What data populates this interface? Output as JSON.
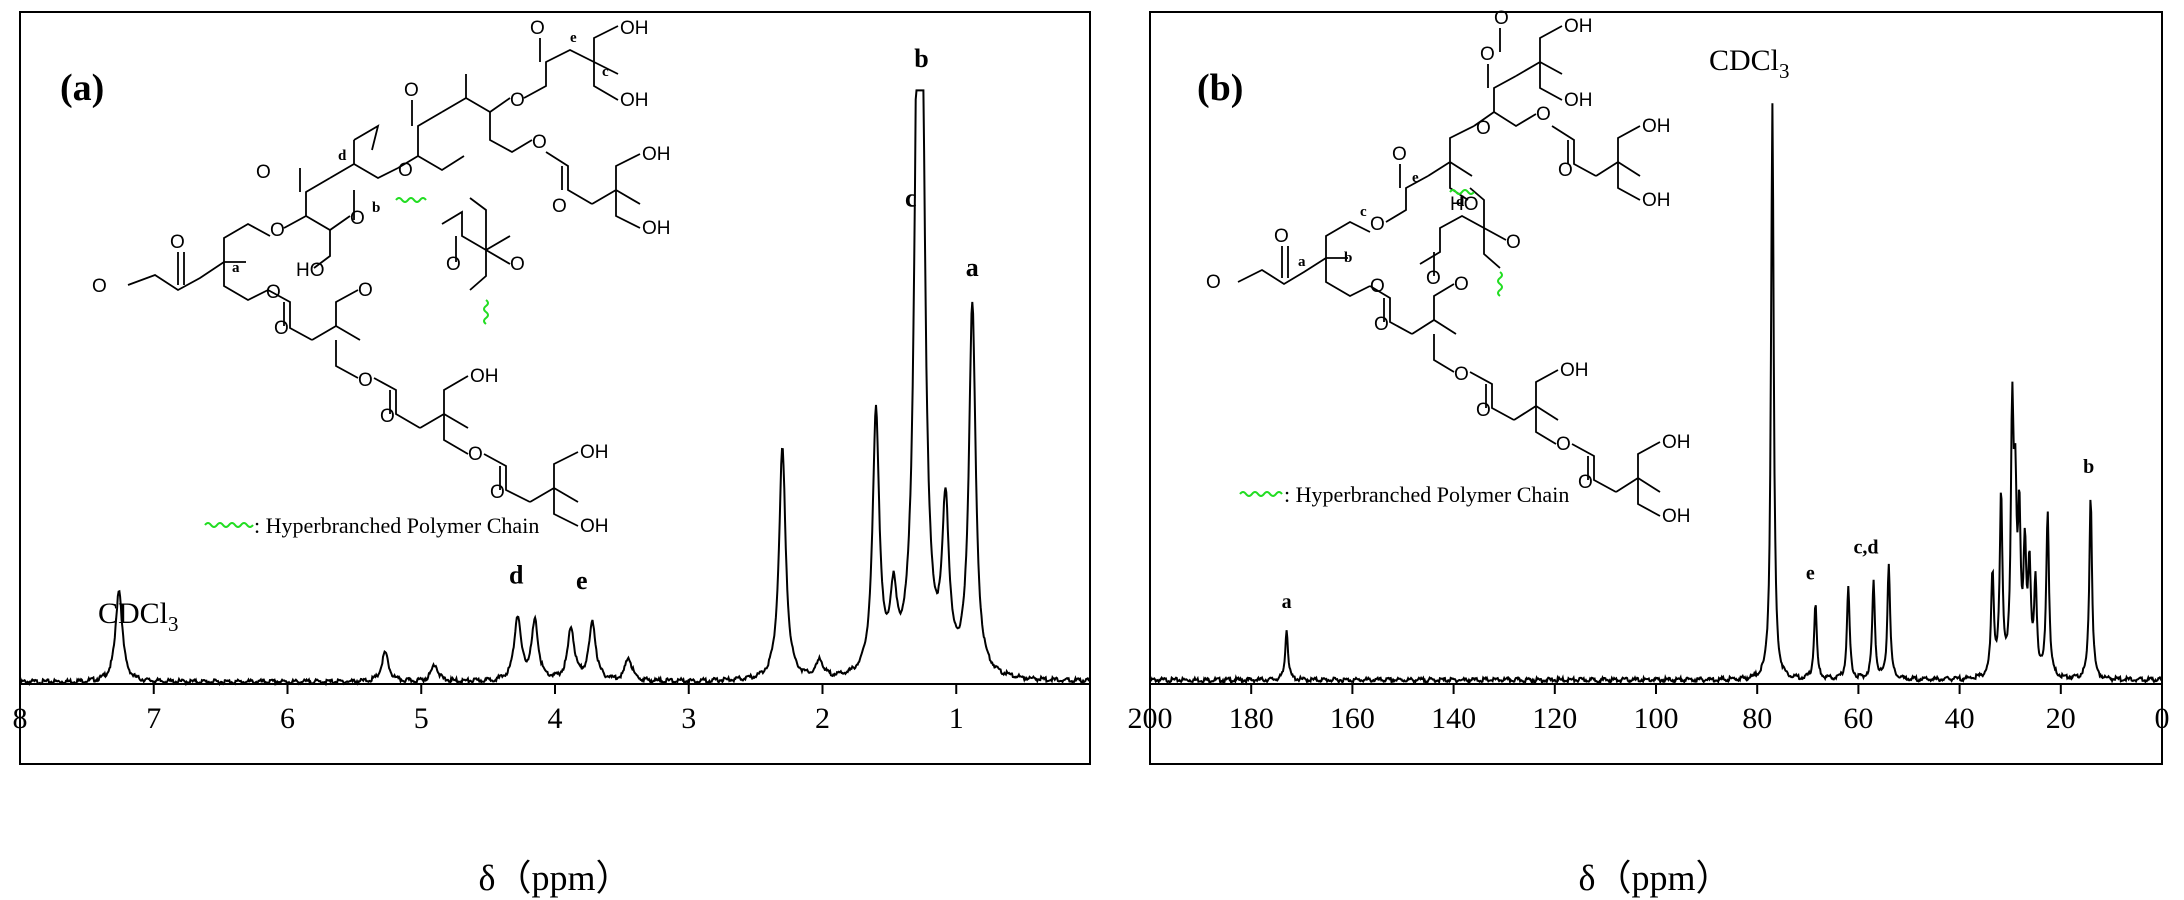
{
  "chart_data": [
    {
      "type": "line",
      "panel_label": "(a)",
      "xlabel": "δ（ppm）",
      "x_reversed": true,
      "xlim": [
        8,
        0
      ],
      "x_ticks": [
        "8",
        "7",
        "6",
        "5",
        "4",
        "3",
        "2",
        "1"
      ],
      "grid": false,
      "legend": "middle-left",
      "legend_text": ": Hyperbranched Polymer Chain",
      "solvent_label": "CDCl",
      "solvent_subscript": "3",
      "series": [
        {
          "peaks": [
            {
              "x": 7.26,
              "height": 0.16
            },
            {
              "x": 5.27,
              "height": 0.05
            },
            {
              "x": 4.9,
              "height": 0.03
            },
            {
              "x": 4.28,
              "height": 0.11
            },
            {
              "x": 4.15,
              "height": 0.1
            },
            {
              "x": 3.88,
              "height": 0.09
            },
            {
              "x": 3.72,
              "height": 0.1
            },
            {
              "x": 3.45,
              "height": 0.04
            },
            {
              "x": 2.3,
              "height": 0.4
            },
            {
              "x": 2.02,
              "height": 0.03
            },
            {
              "x": 1.6,
              "height": 0.45
            },
            {
              "x": 1.47,
              "height": 0.12
            },
            {
              "x": 1.29,
              "height": 0.78
            },
            {
              "x": 1.26,
              "height": 1.0
            },
            {
              "x": 1.08,
              "height": 0.28
            },
            {
              "x": 0.88,
              "height": 0.64
            }
          ]
        }
      ],
      "annotations": [
        {
          "text": "b",
          "x": 1.26,
          "y": 1.06
        },
        {
          "text": "c",
          "x": 1.34,
          "y": 0.82
        },
        {
          "text": "a",
          "x": 0.88,
          "y": 0.7
        },
        {
          "text": "d",
          "x": 4.29,
          "y": 0.17
        },
        {
          "text": "e",
          "x": 3.8,
          "y": 0.16
        }
      ]
    },
    {
      "type": "line",
      "panel_label": "(b)",
      "xlabel": "δ（ppm）",
      "x_reversed": true,
      "xlim": [
        200,
        0
      ],
      "x_ticks": [
        "200",
        "180",
        "160",
        "140",
        "120",
        "100",
        "80",
        "60",
        "40",
        "20",
        "0"
      ],
      "grid": false,
      "legend": "middle-left",
      "legend_text": ": Hyperbranched Polymer Chain",
      "solvent_label": "CDCl",
      "solvent_subscript": "3",
      "series": [
        {
          "peaks": [
            {
              "x": 173.0,
              "height": 0.09
            },
            {
              "x": 77.0,
              "height": 1.0
            },
            {
              "x": 68.5,
              "height": 0.13
            },
            {
              "x": 62.0,
              "height": 0.16
            },
            {
              "x": 57.0,
              "height": 0.17
            },
            {
              "x": 54.0,
              "height": 0.2
            },
            {
              "x": 33.5,
              "height": 0.18
            },
            {
              "x": 31.8,
              "height": 0.31
            },
            {
              "x": 29.6,
              "height": 0.43
            },
            {
              "x": 29.0,
              "height": 0.27
            },
            {
              "x": 28.2,
              "height": 0.25
            },
            {
              "x": 27.1,
              "height": 0.21
            },
            {
              "x": 26.2,
              "height": 0.18
            },
            {
              "x": 25.0,
              "height": 0.16
            },
            {
              "x": 22.6,
              "height": 0.29
            },
            {
              "x": 14.1,
              "height": 0.32
            }
          ]
        }
      ],
      "annotations": [
        {
          "text": "a",
          "x": 173.0,
          "y": 0.125
        },
        {
          "text": "e",
          "x": 69.5,
          "y": 0.175
        },
        {
          "text": "c,d",
          "x": 58.5,
          "y": 0.22
        },
        {
          "text": "b",
          "x": 14.5,
          "y": 0.36
        }
      ]
    }
  ]
}
